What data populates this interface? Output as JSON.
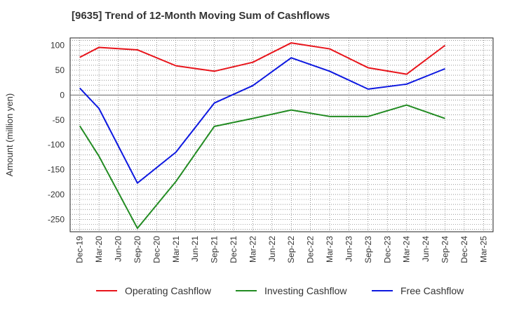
{
  "chart_data": {
    "type": "line",
    "title": "[9635]  Trend of 12-Month Moving Sum of Cashflows",
    "xlabel": "",
    "ylabel": "Amount (million yen)",
    "ylim": [
      -275,
      115
    ],
    "yticks": [
      100,
      50,
      0,
      -50,
      -100,
      -150,
      -200,
      -250
    ],
    "grid": true,
    "legend_position": "bottom",
    "categories": [
      "Dec-19",
      "Mar-20",
      "Jun-20",
      "Sep-20",
      "Dec-20",
      "Mar-21",
      "Jun-21",
      "Sep-21",
      "Dec-21",
      "Mar-22",
      "Jun-22",
      "Sep-22",
      "Dec-22",
      "Mar-23",
      "Jun-23",
      "Sep-23",
      "Dec-23",
      "Mar-24",
      "Jun-24",
      "Sep-24",
      "Dec-24",
      "Mar-25"
    ],
    "series": [
      {
        "name": "Operating Cashflow",
        "color": "#e8141b",
        "points": [
          [
            "Dec-19",
            76
          ],
          [
            "Mar-20",
            96
          ],
          [
            "Sep-20",
            91
          ],
          [
            "Mar-21",
            59
          ],
          [
            "Sep-21",
            48
          ],
          [
            "Mar-22",
            66
          ],
          [
            "Sep-22",
            105
          ],
          [
            "Mar-23",
            93
          ],
          [
            "Sep-23",
            55
          ],
          [
            "Mar-24",
            42
          ],
          [
            "Sep-24",
            100
          ]
        ]
      },
      {
        "name": "Investing Cashflow",
        "color": "#228b22",
        "points": [
          [
            "Dec-19",
            -62
          ],
          [
            "Mar-20",
            -123
          ],
          [
            "Sep-20",
            -268
          ],
          [
            "Mar-21",
            -174
          ],
          [
            "Sep-21",
            -63
          ],
          [
            "Mar-22",
            -47
          ],
          [
            "Sep-22",
            -30
          ],
          [
            "Mar-23",
            -43
          ],
          [
            "Sep-23",
            -43
          ],
          [
            "Mar-24",
            -20
          ],
          [
            "Sep-24",
            -47
          ]
        ]
      },
      {
        "name": "Free Cashflow",
        "color": "#0d18e0",
        "points": [
          [
            "Dec-19",
            14
          ],
          [
            "Mar-20",
            -27
          ],
          [
            "Sep-20",
            -177
          ],
          [
            "Mar-21",
            -115
          ],
          [
            "Sep-21",
            -16
          ],
          [
            "Mar-22",
            19
          ],
          [
            "Sep-22",
            75
          ],
          [
            "Mar-23",
            48
          ],
          [
            "Sep-23",
            12
          ],
          [
            "Mar-24",
            22
          ],
          [
            "Sep-24",
            53
          ]
        ]
      }
    ]
  }
}
